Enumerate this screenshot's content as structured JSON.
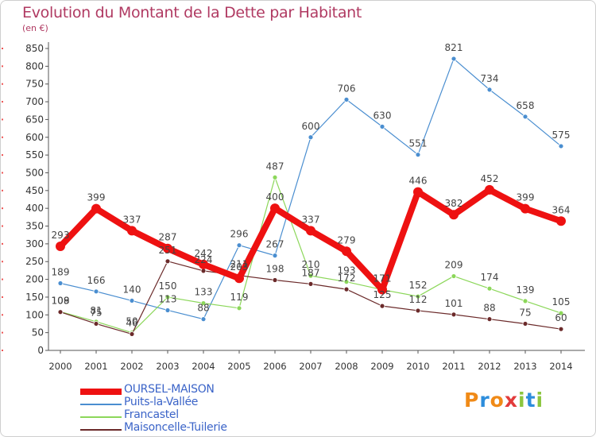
{
  "header": {
    "title": "Evolution du Montant de la Dette par Habitant",
    "subtitle": "(en €)"
  },
  "chart_data": {
    "type": "line",
    "x": [
      "2000",
      "2001",
      "2002",
      "2003",
      "2004",
      "2005",
      "2006",
      "2007",
      "2008",
      "2009",
      "2010",
      "2011",
      "2012",
      "2013",
      "2014"
    ],
    "ylim": [
      0,
      850
    ],
    "yticks": [
      0,
      50,
      100,
      150,
      200,
      250,
      300,
      350,
      400,
      450,
      500,
      550,
      600,
      650,
      700,
      750,
      800,
      850
    ],
    "grid": false,
    "legend_position": "bottom-left",
    "series": [
      {
        "name": "OURSEL-MAISON",
        "color": "#ee1111",
        "values": [
          293,
          399,
          337,
          287,
          242,
          203,
          400,
          337,
          279,
          171,
          446,
          382,
          452,
          399,
          364
        ]
      },
      {
        "name": "Puits-la-Vallée",
        "color": "#4a8ed0",
        "values": [
          189,
          166,
          140,
          113,
          88,
          296,
          267,
          600,
          706,
          630,
          551,
          821,
          734,
          658,
          575
        ]
      },
      {
        "name": "Francastel",
        "color": "#8cd75a",
        "values": [
          109,
          81,
          50,
          150,
          133,
          119,
          487,
          210,
          193,
          171,
          152,
          209,
          174,
          139,
          105
        ]
      },
      {
        "name": "Maisoncelle-Tuilerie",
        "color": "#6b2a2a",
        "values": [
          108,
          75,
          46,
          251,
          224,
          211,
          198,
          187,
          172,
          125,
          112,
          101,
          88,
          75,
          60
        ]
      }
    ],
    "labels": {
      "OURSEL-MAISON": [
        "293",
        "399",
        "337",
        "287",
        "242",
        "203",
        "400",
        "337",
        "279",
        "171",
        "446",
        "382",
        "452",
        "399",
        "364"
      ],
      "Puits-la-Vallée": [
        "189",
        "166",
        "140",
        "113",
        "88",
        "296",
        "267",
        "600",
        "706",
        "630",
        "551",
        "821",
        "734",
        "658",
        "575"
      ],
      "Francastel": [
        "109",
        "81",
        "50",
        "150",
        "133",
        "119",
        "487",
        "210",
        "193",
        "171",
        "152",
        "209",
        "174",
        "139",
        "105"
      ],
      "Maisoncelle-Tuilerie": [
        "108",
        "75",
        "46",
        "251",
        "224",
        "211",
        "198",
        "187",
        "172",
        "125",
        "112",
        "101",
        "88",
        "75",
        "60"
      ]
    }
  },
  "brand": {
    "text": "Proxiti",
    "colors": [
      "#f08a17",
      "#2d8ddc",
      "#f08a17",
      "#e23b3b",
      "#8cc63f",
      "#2d8ddc",
      "#8cc63f"
    ]
  }
}
